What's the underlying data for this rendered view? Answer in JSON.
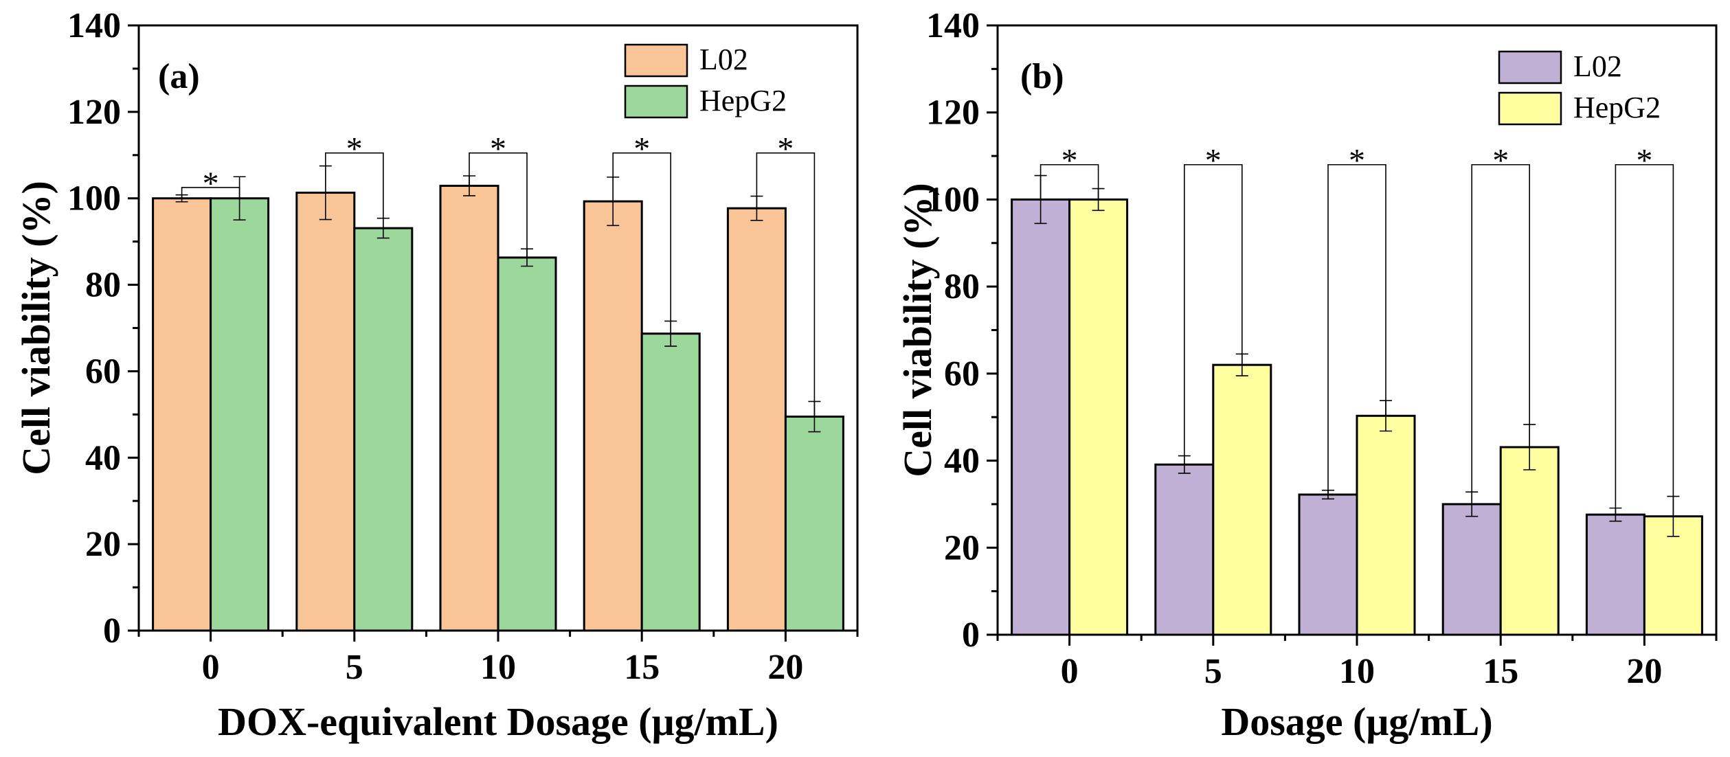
{
  "chart_data": [
    {
      "type": "bar",
      "panel_label": "(a)",
      "xlabel": "DOX-equivalent Dosage (μg/mL)",
      "ylabel": "Cell viability (%)",
      "ylim": [
        0,
        140
      ],
      "yticks": [
        "0",
        "20",
        "40",
        "60",
        "80",
        "100",
        "120",
        "140"
      ],
      "categories": [
        "0",
        "5",
        "10",
        "15",
        "20"
      ],
      "legend_position": "top-right",
      "significance_marker": "*",
      "series": [
        {
          "name": "L02",
          "color": "#F9C597",
          "values": [
            100,
            101.3,
            102.9,
            99.3,
            97.7
          ],
          "errors": [
            0.8,
            6.2,
            2.3,
            5.6,
            2.8
          ]
        },
        {
          "name": "HepG2",
          "color": "#9CD79C",
          "values": [
            100,
            93.1,
            86.3,
            68.7,
            49.5
          ],
          "errors": [
            5.0,
            2.3,
            2.0,
            2.9,
            3.5
          ]
        }
      ],
      "significance_bracket_tops": [
        102.5,
        110.5,
        110.5,
        110.5,
        110.5
      ]
    },
    {
      "type": "bar",
      "panel_label": "(b)",
      "xlabel": "Dosage (μg/mL)",
      "ylabel": "Cell viability (%)",
      "ylim": [
        0,
        140
      ],
      "yticks": [
        "0",
        "20",
        "40",
        "60",
        "80",
        "100",
        "120",
        "140"
      ],
      "categories": [
        "0",
        "5",
        "10",
        "15",
        "20"
      ],
      "legend_position": "top-right",
      "significance_marker": "*",
      "series": [
        {
          "name": "L02",
          "color": "#C1B0D6",
          "values": [
            100,
            39.1,
            32.2,
            30.0,
            27.6
          ],
          "errors": [
            5.5,
            2.0,
            1.0,
            2.8,
            1.5
          ]
        },
        {
          "name": "HepG2",
          "color": "#FFFF9F",
          "values": [
            100,
            62.0,
            50.3,
            43.1,
            27.2
          ],
          "errors": [
            2.5,
            2.5,
            3.5,
            5.2,
            4.6
          ]
        }
      ],
      "significance_bracket_tops": [
        108,
        108,
        108,
        108,
        108
      ]
    }
  ]
}
